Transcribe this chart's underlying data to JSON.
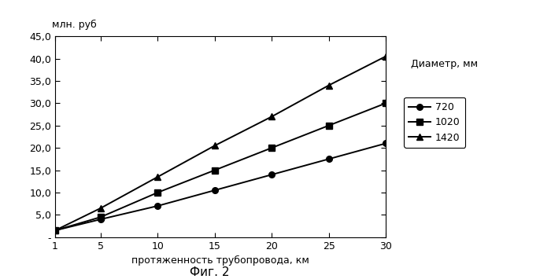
{
  "x": [
    1,
    5,
    10,
    15,
    20,
    25,
    30
  ],
  "y_720": [
    1.5,
    4.0,
    7.0,
    10.5,
    14.0,
    17.5,
    21.0
  ],
  "y_1020": [
    1.5,
    4.5,
    10.0,
    15.0,
    20.0,
    25.0,
    30.0
  ],
  "y_1420": [
    1.5,
    6.5,
    13.5,
    20.5,
    27.0,
    34.0,
    40.5
  ],
  "xlabel": "протяженность трубопровода, км",
  "ylabel": "млн. руб",
  "legend_title": "Диаметр, мм",
  "legend_labels": [
    "720",
    "1020",
    "1420"
  ],
  "caption": "Фиг. 2",
  "ylim": [
    0,
    45
  ],
  "xlim": [
    1,
    30
  ],
  "yticks": [
    0,
    5,
    10,
    15,
    20,
    25,
    30,
    35,
    40,
    45
  ],
  "ytick_labels": [
    "-",
    "5,0",
    "10,0",
    "15,0",
    "20,0",
    "25,0",
    "30,0",
    "35,0",
    "40,0",
    "45,0"
  ],
  "xticks": [
    1,
    5,
    10,
    15,
    20,
    25,
    30
  ],
  "line_color": "#000000",
  "marker_circle": "o",
  "marker_square": "s",
  "marker_triangle": "^",
  "bg_color": "#ffffff"
}
